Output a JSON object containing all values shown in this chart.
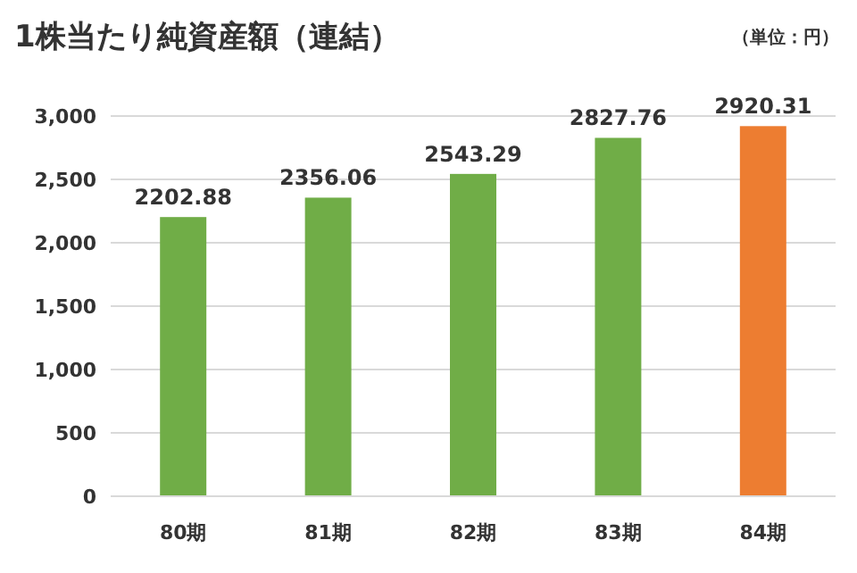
{
  "chart_data": {
    "type": "bar",
    "title": "1株当たり純資産額（連結）",
    "annotations": [
      "（単位：円）"
    ],
    "categories": [
      "80期",
      "81期",
      "82期",
      "83期",
      "84期"
    ],
    "values": [
      2202.88,
      2356.06,
      2543.29,
      2827.76,
      2920.31
    ],
    "colors": [
      "#70ad47",
      "#70ad47",
      "#70ad47",
      "#70ad47",
      "#ed7d31"
    ],
    "ylim": [
      0,
      3000
    ],
    "yticks": [
      {
        "value": 0,
        "label": "0"
      },
      {
        "value": 500,
        "label": "500"
      },
      {
        "value": 1000,
        "label": "1,000"
      },
      {
        "value": 1500,
        "label": "1,500"
      },
      {
        "value": 2000,
        "label": "2,000"
      },
      {
        "value": 2500,
        "label": "2,500"
      },
      {
        "value": 3000,
        "label": "3,000"
      }
    ],
    "grid": "y",
    "data_labels": true
  }
}
